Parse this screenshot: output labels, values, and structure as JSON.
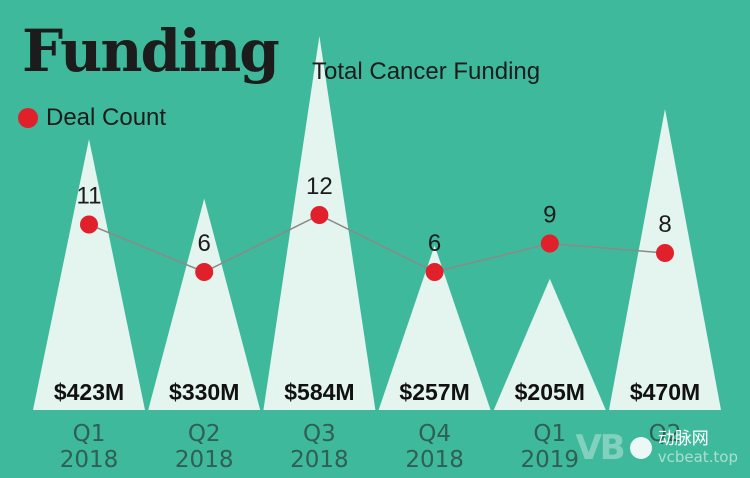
{
  "title": "Funding",
  "subtitle": "Total Cancer Funding",
  "legend": {
    "label": "Deal Count",
    "marker_color": "#e0202a"
  },
  "colors": {
    "background": "#3fb99b",
    "triangle": "#e4f4ee",
    "line": "#8a8a8a",
    "dot": "#e0202a"
  },
  "watermark": {
    "logo_text": "VB",
    "name": "动脉网",
    "url": "vcbeat.top"
  },
  "chart_data": {
    "type": "bar",
    "categories": [
      "Q1 2018",
      "Q2 2018",
      "Q3 2018",
      "Q4 2018",
      "Q1 2019",
      "Q2"
    ],
    "category_lines": [
      [
        "Q1",
        "2018"
      ],
      [
        "Q2",
        "2018"
      ],
      [
        "Q3",
        "2018"
      ],
      [
        "Q4",
        "2018"
      ],
      [
        "Q1",
        "2019"
      ],
      [
        "Q2",
        ""
      ]
    ],
    "series": [
      {
        "name": "Total Cancer Funding",
        "unit": "$M",
        "values": [
          423,
          330,
          584,
          257,
          205,
          470
        ],
        "labels": [
          "$423M",
          "$330M",
          "$584M",
          "$257M",
          "$205M",
          "$470M"
        ]
      },
      {
        "name": "Deal Count",
        "values": [
          11,
          6,
          12,
          6,
          9,
          8
        ]
      }
    ]
  }
}
